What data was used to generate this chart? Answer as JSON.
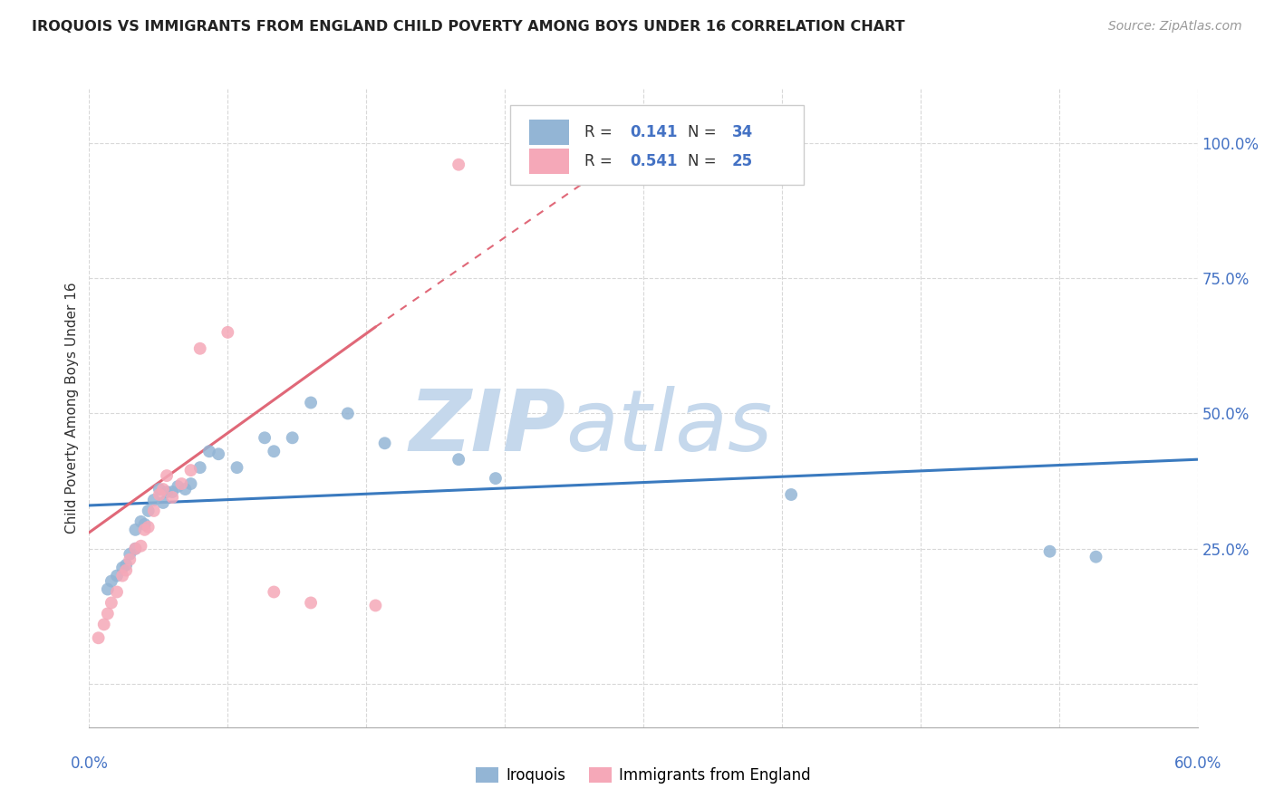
{
  "title": "IROQUOIS VS IMMIGRANTS FROM ENGLAND CHILD POVERTY AMONG BOYS UNDER 16 CORRELATION CHART",
  "source": "Source: ZipAtlas.com",
  "ylabel": "Child Poverty Among Boys Under 16",
  "xlim": [
    0.0,
    0.6
  ],
  "ylim": [
    -0.08,
    1.1
  ],
  "ytick_vals": [
    0.0,
    0.25,
    0.5,
    0.75,
    1.0
  ],
  "ytick_labels": [
    "",
    "25.0%",
    "50.0%",
    "75.0%",
    "100.0%"
  ],
  "iroquois_color": "#93b5d5",
  "england_color": "#f5a8b8",
  "trend_iroquois_color": "#3a7abf",
  "trend_england_color": "#e06878",
  "watermark_zip": "ZIP",
  "watermark_atlas": "atlas",
  "watermark_color_zip": "#c5d8ec",
  "watermark_color_atlas": "#c5d8ec",
  "r1": "0.141",
  "n1": "34",
  "r2": "0.541",
  "n2": "25",
  "iroquois_x": [
    0.01,
    0.012,
    0.015,
    0.018,
    0.02,
    0.022,
    0.025,
    0.025,
    0.028,
    0.03,
    0.032,
    0.035,
    0.038,
    0.04,
    0.042,
    0.045,
    0.048,
    0.052,
    0.055,
    0.06,
    0.065,
    0.07,
    0.08,
    0.095,
    0.1,
    0.11,
    0.12,
    0.14,
    0.16,
    0.2,
    0.22,
    0.38,
    0.52,
    0.545
  ],
  "iroquois_y": [
    0.175,
    0.19,
    0.2,
    0.215,
    0.22,
    0.24,
    0.25,
    0.285,
    0.3,
    0.295,
    0.32,
    0.34,
    0.36,
    0.335,
    0.355,
    0.355,
    0.365,
    0.36,
    0.37,
    0.4,
    0.43,
    0.425,
    0.4,
    0.455,
    0.43,
    0.455,
    0.52,
    0.5,
    0.445,
    0.415,
    0.38,
    0.35,
    0.245,
    0.235
  ],
  "england_x": [
    0.005,
    0.008,
    0.01,
    0.012,
    0.015,
    0.018,
    0.02,
    0.022,
    0.025,
    0.028,
    0.03,
    0.032,
    0.035,
    0.038,
    0.04,
    0.042,
    0.045,
    0.05,
    0.055,
    0.06,
    0.075,
    0.1,
    0.12,
    0.155,
    0.2
  ],
  "england_y": [
    0.085,
    0.11,
    0.13,
    0.15,
    0.17,
    0.2,
    0.21,
    0.23,
    0.25,
    0.255,
    0.285,
    0.29,
    0.32,
    0.35,
    0.36,
    0.385,
    0.345,
    0.37,
    0.395,
    0.62,
    0.65,
    0.17,
    0.15,
    0.145,
    0.96
  ],
  "trend_eng_x0": 0.0,
  "trend_eng_y0": 0.28,
  "trend_eng_x1": 0.155,
  "trend_eng_y1": 0.66,
  "trend_eng_dash_x1": 0.32,
  "trend_eng_dash_y1": 1.05,
  "trend_iroq_x0": 0.0,
  "trend_iroq_y0": 0.33,
  "trend_iroq_x1": 0.6,
  "trend_iroq_y1": 0.415,
  "background_color": "#ffffff",
  "grid_color": "#d8d8d8",
  "value_color": "#4472c4",
  "label_color": "#333333"
}
